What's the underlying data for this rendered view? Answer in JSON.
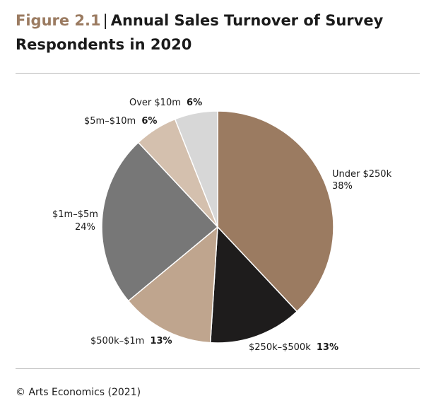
{
  "header": {
    "figure_label": "Figure 2.1",
    "separator": "|",
    "title_line1": "Annual Sales Turnover of Survey",
    "title_line2": "Respondents in 2020"
  },
  "footer": {
    "source": "© Arts Economics (2021)"
  },
  "chart_data": {
    "type": "pie",
    "title": "Annual Sales Turnover of Survey Respondents in 2020",
    "slices": [
      {
        "label": "Under $250k",
        "value": 38,
        "value_label": "38%",
        "color": "#9b7b61"
      },
      {
        "label": "$250k–$500k",
        "value": 13,
        "value_label": "13%",
        "color": "#1e1c1c"
      },
      {
        "label": "$500k–$1m",
        "value": 13,
        "value_label": "13%",
        "color": "#bfa58e"
      },
      {
        "label": "$1m–$5m",
        "value": 24,
        "value_label": "24%",
        "color": "#777777"
      },
      {
        "label": "$5m–$10m",
        "value": 6,
        "value_label": "6%",
        "color": "#d4c0ae"
      },
      {
        "label": "Over $10m",
        "value": 6,
        "value_label": "6%",
        "color": "#d7d7d7"
      }
    ],
    "start_angle": "12 o'clock",
    "direction": "clockwise",
    "legend": "none"
  }
}
